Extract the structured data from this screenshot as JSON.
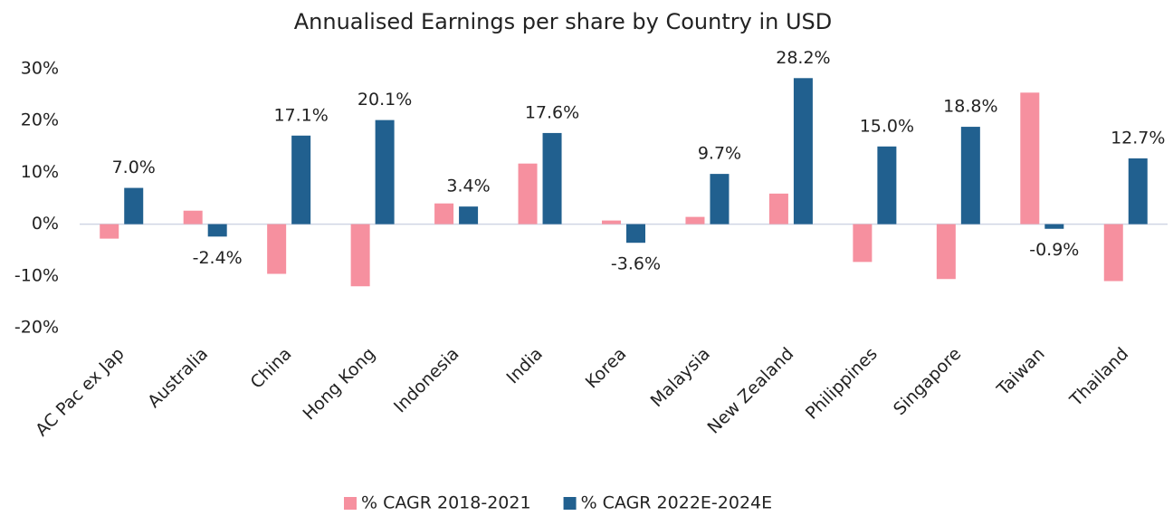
{
  "chart_data": {
    "type": "bar",
    "title": "Annualised Earnings per share by Country in USD",
    "categories": [
      "AC Pac ex Jap",
      "Australia",
      "China",
      "Hong Kong",
      "Indonesia",
      "India",
      "Korea",
      "Malaysia",
      "New Zealand",
      "Philippines",
      "Singapore",
      "Taiwan",
      "Thailand"
    ],
    "series": [
      {
        "name": "% CAGR 2018-2021",
        "color": "#f6909f",
        "values": [
          -2.8,
          2.6,
          -9.6,
          -12.0,
          4.0,
          11.7,
          0.7,
          1.4,
          5.9,
          -7.3,
          -10.6,
          25.4,
          -11.0
        ]
      },
      {
        "name": "% CAGR 2022E-2024E",
        "color": "#21608f",
        "values": [
          7.0,
          -2.4,
          17.1,
          20.1,
          3.4,
          17.6,
          -3.6,
          9.7,
          28.2,
          15.0,
          18.8,
          -0.9,
          12.7
        ],
        "value_labels": [
          "7.0%",
          "-2.4%",
          "17.1%",
          "20.1%",
          "3.4%",
          "17.6%",
          "-3.6%",
          "9.7%",
          "28.2%",
          "15.0%",
          "18.8%",
          "-0.9%",
          "12.7%"
        ]
      }
    ],
    "ylim": [
      -20,
      30
    ],
    "yticks": [
      {
        "value": -20,
        "label": "-20%"
      },
      {
        "value": -10,
        "label": "-10%"
      },
      {
        "value": 0,
        "label": "0%"
      },
      {
        "value": 10,
        "label": "10%"
      },
      {
        "value": 20,
        "label": "20%"
      },
      {
        "value": 30,
        "label": "30%"
      }
    ],
    "legend": "bottom"
  }
}
